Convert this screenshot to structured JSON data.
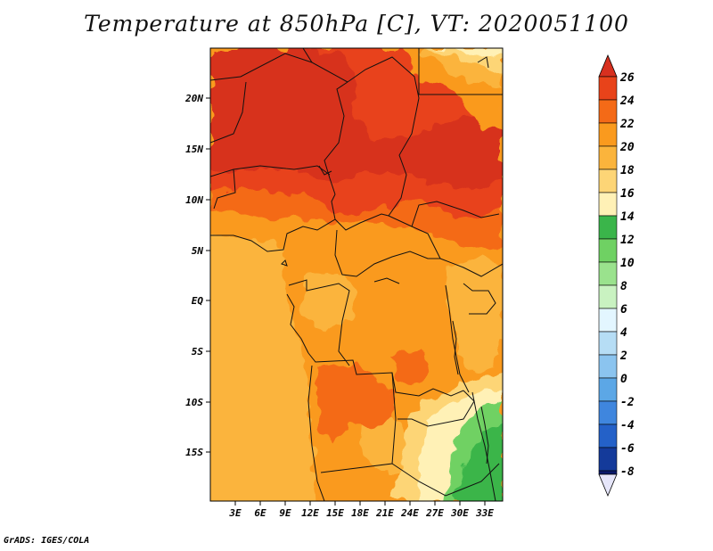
{
  "title": "Temperature at 850hPa [C], VT: 2020051100",
  "footer": "GrADS: IGES/COLA",
  "map": {
    "lat_labels": [
      "20N",
      "15N",
      "10N",
      "5N",
      "EQ",
      "5S",
      "10S",
      "15S"
    ],
    "lon_labels": [
      "3E",
      "6E",
      "9E",
      "12E",
      "15E",
      "18E",
      "21E",
      "24E",
      "27E",
      "30E",
      "33E"
    ]
  },
  "legend": {
    "labels": [
      "26",
      "24",
      "22",
      "20",
      "18",
      "16",
      "14",
      "12",
      "10",
      "8",
      "6",
      "4",
      "2",
      "0",
      "-2",
      "-4",
      "-6",
      "-8"
    ],
    "colors": {
      "gt26": "#d7301f",
      "24to26": "#e8431a",
      "22to24": "#f46a17",
      "20to22": "#fa9a1e",
      "18to20": "#fbb43c",
      "16to18": "#fdd576",
      "14to16": "#fff1b6",
      "12to14": "#3ab54a",
      "10to12": "#6fd163",
      "8to10": "#9ae28d",
      "6to8": "#c9f2c1",
      "4to6": "#e3f6ff",
      "2to4": "#b6ddf5",
      "0to2": "#8bc4ef",
      "m2to0": "#5ca7e6",
      "m4tom2": "#3f86de",
      "m6tom4": "#2461c8",
      "m8tom6": "#143a9a",
      "lt_m8": "#0b1a6b",
      "below": "#e6e6fa"
    }
  }
}
